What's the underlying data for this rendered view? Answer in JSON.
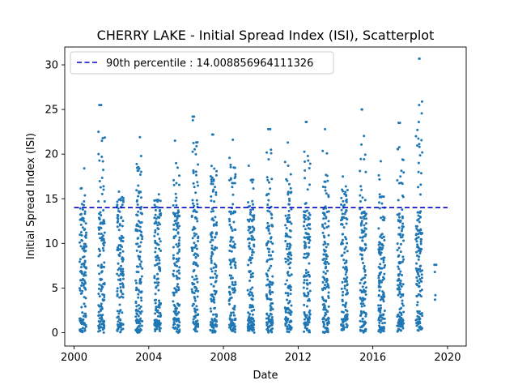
{
  "chart_data": {
    "type": "scatter",
    "title": "CHERRY LAKE - Initial Spread Index (ISI), Scatterplot",
    "xlabel": "Date",
    "ylabel": "Initial Spread Index (ISI)",
    "xlim": [
      1999.5,
      2021.0
    ],
    "ylim": [
      -1.5,
      32.0
    ],
    "x_ticks": [
      2000,
      2004,
      2008,
      2012,
      2016,
      2020
    ],
    "y_ticks": [
      0,
      5,
      10,
      15,
      20,
      25,
      30
    ],
    "grid": false,
    "legend_position": "upper-left",
    "point_color": "#1f77b4",
    "reference_line_color": "#0000cc",
    "reference_line": {
      "label": "90th percentile : 14.008856964111326",
      "value": 14.008856964111326
    },
    "seasons": [
      {
        "year": 2000,
        "start": 2000.3,
        "end": 2000.65,
        "max": 18.4
      },
      {
        "year": 2001,
        "start": 2001.3,
        "end": 2001.65,
        "max": 25.5
      },
      {
        "year": 2002,
        "start": 2002.3,
        "end": 2002.65,
        "max": 15.8
      },
      {
        "year": 2003,
        "start": 2003.3,
        "end": 2003.65,
        "max": 21.9
      },
      {
        "year": 2004,
        "start": 2004.3,
        "end": 2004.65,
        "max": 15.5
      },
      {
        "year": 2005,
        "start": 2005.3,
        "end": 2005.65,
        "max": 21.5
      },
      {
        "year": 2006,
        "start": 2006.3,
        "end": 2006.65,
        "max": 24.2
      },
      {
        "year": 2007,
        "start": 2007.3,
        "end": 2007.65,
        "max": 22.2
      },
      {
        "year": 2008,
        "start": 2008.3,
        "end": 2008.65,
        "max": 21.6
      },
      {
        "year": 2009,
        "start": 2009.3,
        "end": 2009.65,
        "max": 18.7
      },
      {
        "year": 2010,
        "start": 2010.3,
        "end": 2010.65,
        "max": 22.8
      },
      {
        "year": 2011,
        "start": 2011.3,
        "end": 2011.65,
        "max": 21.3
      },
      {
        "year": 2012,
        "start": 2012.3,
        "end": 2012.65,
        "max": 23.6
      },
      {
        "year": 2013,
        "start": 2013.3,
        "end": 2013.65,
        "max": 22.8
      },
      {
        "year": 2014,
        "start": 2014.3,
        "end": 2014.65,
        "max": 17.5
      },
      {
        "year": 2015,
        "start": 2015.3,
        "end": 2015.65,
        "max": 25.0
      },
      {
        "year": 2016,
        "start": 2016.3,
        "end": 2016.65,
        "max": 19.2
      },
      {
        "year": 2017,
        "start": 2017.3,
        "end": 2017.65,
        "max": 23.5
      },
      {
        "year": 2018,
        "start": 2018.3,
        "end": 2018.65,
        "max": 30.7
      },
      {
        "year": 2019,
        "start": 2019.3,
        "end": 2019.45,
        "max": 7.6
      }
    ],
    "notable_points": [
      {
        "x": 2001.35,
        "y": 25.5
      },
      {
        "x": 2006.35,
        "y": 24.2
      },
      {
        "x": 2006.36,
        "y": 23.8
      },
      {
        "x": 2007.45,
        "y": 22.2
      },
      {
        "x": 2010.4,
        "y": 22.8
      },
      {
        "x": 2012.45,
        "y": 23.6
      },
      {
        "x": 2015.4,
        "y": 25.0
      },
      {
        "x": 2017.45,
        "y": 23.5
      },
      {
        "x": 2018.5,
        "y": 30.7
      },
      {
        "x": 2018.48,
        "y": 25.5
      },
      {
        "x": 2019.3,
        "y": 7.6
      },
      {
        "x": 2019.32,
        "y": 6.8
      },
      {
        "x": 2019.35,
        "y": 4.2
      },
      {
        "x": 2019.33,
        "y": 3.7
      }
    ]
  }
}
